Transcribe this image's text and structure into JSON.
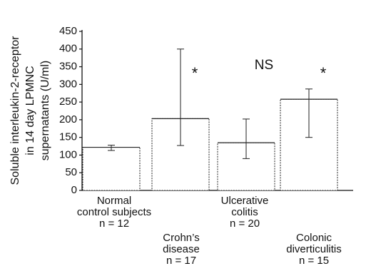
{
  "chart_data": {
    "type": "bar",
    "title": "",
    "xlabel": "",
    "ylabel": [
      "Soluble interleukin-2-receptor",
      "in 14 day LPMNC",
      "supernatants (U/ml)"
    ],
    "ylim": [
      0,
      450
    ],
    "yticks": [
      "0",
      "50",
      "100",
      "150",
      "200",
      "250",
      "300",
      "350",
      "400",
      "450"
    ],
    "categories": [
      [
        "Normal",
        "control subjects",
        "n = 12"
      ],
      [
        "Crohn’s",
        "disease",
        "n = 17"
      ],
      [
        "Ulcerative",
        "colitis",
        "n = 20"
      ],
      [
        "Colonic",
        "diverticulitis",
        "n = 15"
      ]
    ],
    "values": [
      122,
      203,
      135,
      258
    ],
    "error_low": [
      113,
      127,
      90,
      150
    ],
    "error_high": [
      128,
      400,
      202,
      287
    ],
    "annotations": [
      "",
      "*",
      "NS",
      "*"
    ],
    "grid": false,
    "bar_fill": "#ffffff",
    "bar_edge": "#222222",
    "text_color": "#111111"
  }
}
